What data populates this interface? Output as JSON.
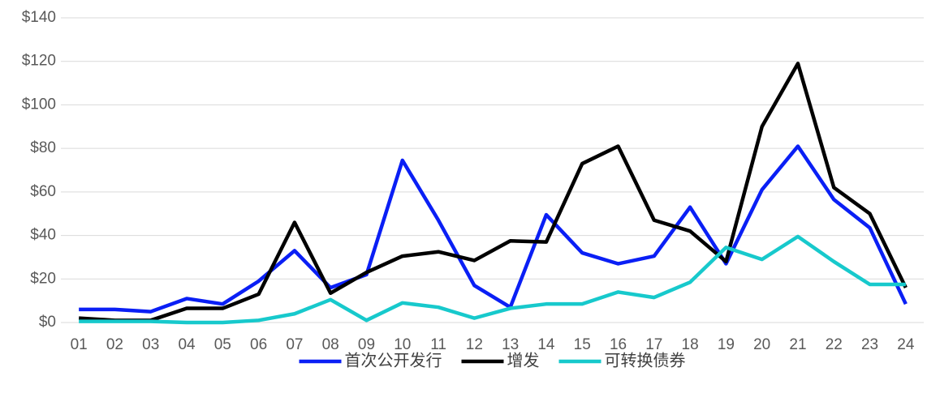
{
  "chart_data": {
    "type": "line",
    "categories": [
      "01",
      "02",
      "03",
      "04",
      "05",
      "06",
      "07",
      "08",
      "09",
      "10",
      "11",
      "12",
      "13",
      "14",
      "15",
      "16",
      "17",
      "18",
      "19",
      "20",
      "21",
      "22",
      "23",
      "24"
    ],
    "series": [
      {
        "name": "首次公开发行",
        "color": "#0a1ff5",
        "values": [
          6,
          6,
          5,
          11,
          8.5,
          19,
          33,
          16,
          22,
          74.5,
          47,
          17,
          7,
          49.5,
          32,
          27,
          30.5,
          53,
          27,
          61,
          81,
          56.5,
          43.5,
          8.5
        ]
      },
      {
        "name": "增发",
        "color": "#000000",
        "values": [
          2,
          1,
          1,
          6.5,
          6.5,
          13,
          46,
          13.5,
          23,
          30.5,
          32.5,
          28.5,
          37.5,
          37,
          73,
          81,
          47,
          42,
          28,
          90,
          119,
          62,
          50,
          16
        ]
      },
      {
        "name": "可转换债券",
        "color": "#17c9cc",
        "values": [
          0.5,
          0.5,
          0.5,
          0,
          0,
          1,
          4,
          10.5,
          1,
          9,
          7,
          2,
          6.5,
          8.5,
          8.5,
          14,
          11.5,
          18.5,
          34.5,
          29,
          39.5,
          28,
          17.5,
          17.5
        ]
      }
    ],
    "ylim": [
      0,
      140
    ],
    "yticks": [
      {
        "value": 0,
        "label": "$0"
      },
      {
        "value": 20,
        "label": "$20"
      },
      {
        "value": 40,
        "label": "$40"
      },
      {
        "value": 60,
        "label": "$60"
      },
      {
        "value": 80,
        "label": "$80"
      },
      {
        "value": 100,
        "label": "$100"
      },
      {
        "value": 120,
        "label": "$120"
      },
      {
        "value": 140,
        "label": "$140"
      }
    ],
    "grid": true,
    "legend": "bottom"
  }
}
